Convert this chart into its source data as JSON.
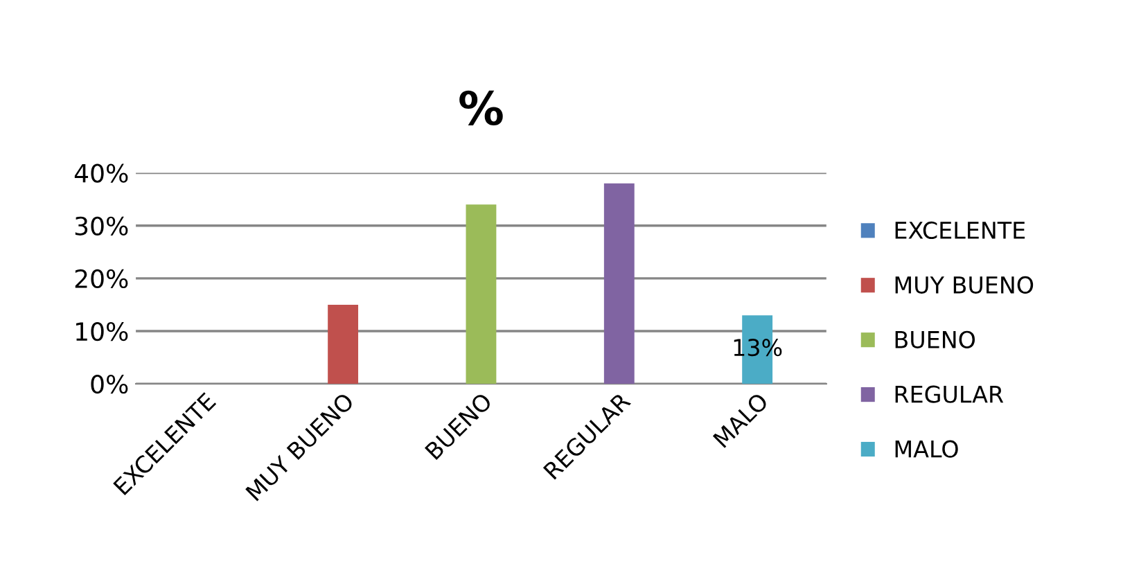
{
  "chart_data": {
    "type": "bar",
    "title": "%",
    "categories": [
      "EXCELENTE",
      "MUY BUENO",
      "BUENO",
      "REGULAR",
      "MALO"
    ],
    "series": [
      {
        "name": "EXCELENTE",
        "color": "#4f81bd",
        "values": [
          0,
          null,
          null,
          null,
          null
        ]
      },
      {
        "name": "MUY BUENO",
        "color": "#c0504d",
        "values": [
          null,
          15,
          null,
          null,
          null
        ]
      },
      {
        "name": "BUENO",
        "color": "#9bbb59",
        "values": [
          null,
          null,
          34,
          null,
          null
        ]
      },
      {
        "name": "REGULAR",
        "color": "#8064a2",
        "values": [
          null,
          null,
          null,
          38,
          null
        ]
      },
      {
        "name": "MALO",
        "color": "#4bacc6",
        "values": [
          null,
          null,
          null,
          null,
          13
        ],
        "value_labels": [
          null,
          null,
          null,
          null,
          "13%"
        ]
      }
    ],
    "ylim": [
      0,
      40
    ],
    "yticks": [
      {
        "value": 0,
        "label": "0%"
      },
      {
        "value": 10,
        "label": "10%"
      },
      {
        "value": 20,
        "label": "20%"
      },
      {
        "value": 30,
        "label": "30%"
      },
      {
        "value": 40,
        "label": "40%"
      }
    ],
    "grid": "y",
    "legend": "right"
  }
}
